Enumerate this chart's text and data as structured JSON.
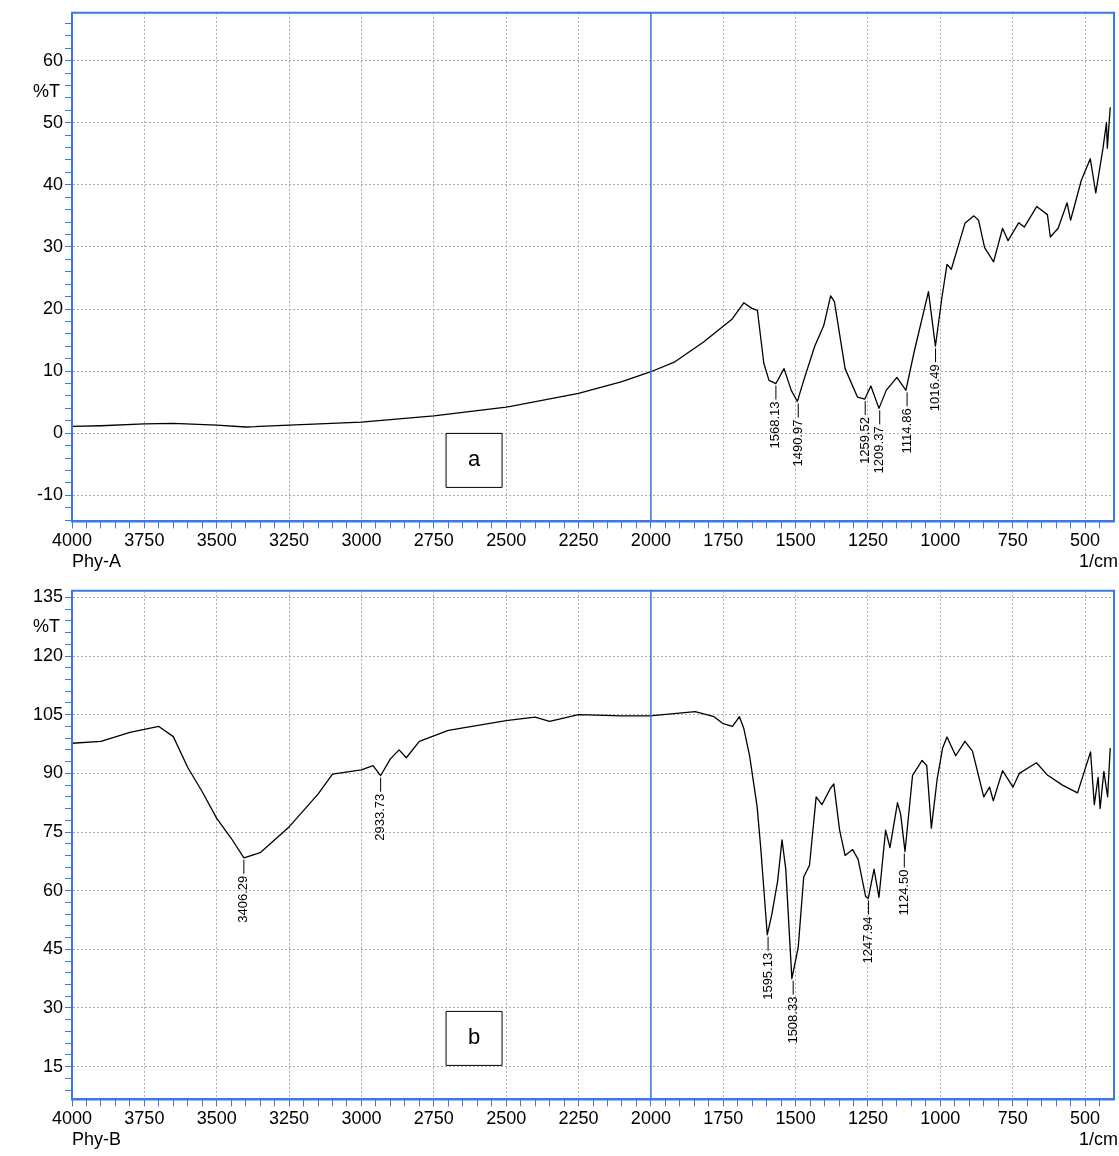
{
  "chart_data": [
    {
      "type": "line",
      "xlabel": "1/cm",
      "ylabel": "%T",
      "color": "#000000",
      "grid": true,
      "x": [
        4000,
        3900,
        3750,
        3650,
        3500,
        3400,
        3250,
        3000,
        2750,
        2500,
        2250,
        2100,
        2000,
        1917,
        1818,
        1719,
        1679,
        1651,
        1632,
        1610,
        1592,
        1568,
        1540,
        1515,
        1494,
        1472,
        1434,
        1403,
        1379,
        1366,
        1329,
        1286,
        1261,
        1240,
        1212,
        1187,
        1150,
        1119,
        1090,
        1041,
        1017,
        995,
        977,
        962,
        915,
        884,
        868,
        847,
        816,
        785,
        766,
        729,
        710,
        667,
        630,
        620,
        593,
        562,
        550,
        513,
        482,
        463,
        438,
        426,
        423,
        413
      ],
      "values": [
        1.1,
        1.2,
        1.5,
        1.6,
        1.3,
        1.0,
        1.3,
        1.8,
        2.8,
        4.2,
        6.4,
        8.3,
        9.9,
        11.5,
        14.7,
        18.4,
        21.0,
        20.1,
        19.8,
        11.3,
        8.5,
        8.0,
        10.4,
        6.9,
        5.1,
        8.5,
        14.0,
        17.3,
        22.1,
        21.2,
        10.4,
        5.8,
        5.5,
        7.6,
        4.0,
        6.9,
        9.0,
        6.9,
        13.2,
        22.8,
        14.0,
        21.7,
        27.2,
        26.4,
        33.8,
        35.0,
        34.3,
        29.9,
        27.6,
        33.0,
        31.0,
        33.9,
        33.2,
        36.5,
        35.2,
        31.6,
        33.0,
        37.1,
        34.3,
        40.7,
        44.2,
        38.7,
        45.9,
        50.0,
        45.9,
        52.5
      ],
      "xlim": [
        4000,
        400
      ],
      "ylim": [
        -14.2,
        67.7
      ],
      "xticks": [
        4000,
        3750,
        3500,
        3250,
        3000,
        2750,
        2500,
        2250,
        2000,
        1750,
        1500,
        1250,
        1000,
        750,
        500,
        {
          "value": 450,
          "label": null
        },
        {
          "value": 550,
          "label": null
        },
        {
          "value": 600,
          "label": null
        },
        {
          "value": 650,
          "label": null
        },
        {
          "value": 700,
          "label": null
        },
        {
          "value": 800,
          "label": null
        },
        {
          "value": 850,
          "label": null
        },
        {
          "value": 900,
          "label": null
        },
        {
          "value": 950,
          "label": null
        },
        {
          "value": 1050,
          "label": null
        },
        {
          "value": 1100,
          "label": null
        },
        {
          "value": 1150,
          "label": null
        },
        {
          "value": 1200,
          "label": null
        },
        {
          "value": 1300,
          "label": null
        },
        {
          "value": 1350,
          "label": null
        },
        {
          "value": 1400,
          "label": null
        },
        {
          "value": 1450,
          "label": null
        },
        {
          "value": 1550,
          "label": null
        },
        {
          "value": 1600,
          "label": null
        },
        {
          "value": 1650,
          "label": null
        },
        {
          "value": 1700,
          "label": null
        },
        {
          "value": 1800,
          "label": null
        },
        {
          "value": 1850,
          "label": null
        },
        {
          "value": 1900,
          "label": null
        },
        {
          "value": 1950,
          "label": null
        },
        {
          "value": 2050,
          "label": null
        },
        {
          "value": 2100,
          "label": null
        },
        {
          "value": 2150,
          "label": null
        },
        {
          "value": 2200,
          "label": null
        },
        {
          "value": 2300,
          "label": null
        },
        {
          "value": 2350,
          "label": null
        },
        {
          "value": 2400,
          "label": null
        },
        {
          "value": 2450,
          "label": null
        },
        {
          "value": 2550,
          "label": null
        },
        {
          "value": 2600,
          "label": null
        },
        {
          "value": 2650,
          "label": null
        },
        {
          "value": 2700,
          "label": null
        },
        {
          "value": 2800,
          "label": null
        },
        {
          "value": 2850,
          "label": null
        },
        {
          "value": 2900,
          "label": null
        },
        {
          "value": 2950,
          "label": null
        },
        {
          "value": 3050,
          "label": null
        },
        {
          "value": 3100,
          "label": null
        },
        {
          "value": 3150,
          "label": null
        },
        {
          "value": 3200,
          "label": null
        },
        {
          "value": 3300,
          "label": null
        },
        {
          "value": 3350,
          "label": null
        },
        {
          "value": 3400,
          "label": null
        },
        {
          "value": 3450,
          "label": null
        },
        {
          "value": 3550,
          "label": null
        },
        {
          "value": 3600,
          "label": null
        },
        {
          "value": 3650,
          "label": null
        },
        {
          "value": 3700,
          "label": null
        },
        {
          "value": 3800,
          "label": null
        },
        {
          "value": 3850,
          "label": null
        },
        {
          "value": 3900,
          "label": null
        },
        {
          "value": 3950,
          "label": null
        }
      ],
      "yticks": [
        -10,
        0,
        10,
        20,
        30,
        40,
        50,
        60,
        {
          "value": -14,
          "label": null
        },
        {
          "value": -12,
          "label": null
        },
        {
          "value": -8,
          "label": null
        },
        {
          "value": -6,
          "label": null
        },
        {
          "value": -4,
          "label": null
        },
        {
          "value": -2,
          "label": null
        },
        {
          "value": 2,
          "label": null
        },
        {
          "value": 4,
          "label": null
        },
        {
          "value": 6,
          "label": null
        },
        {
          "value": 8,
          "label": null
        },
        {
          "value": 12,
          "label": null
        },
        {
          "value": 14,
          "label": null
        },
        {
          "value": 16,
          "label": null
        },
        {
          "value": 18,
          "label": null
        },
        {
          "value": 22,
          "label": null
        },
        {
          "value": 24,
          "label": null
        },
        {
          "value": 26,
          "label": null
        },
        {
          "value": 28,
          "label": null
        },
        {
          "value": 32,
          "label": null
        },
        {
          "value": 34,
          "label": null
        },
        {
          "value": 36,
          "label": null
        },
        {
          "value": 38,
          "label": null
        },
        {
          "value": 42,
          "label": null
        },
        {
          "value": 44,
          "label": null
        },
        {
          "value": 46,
          "label": null
        },
        {
          "value": 48,
          "label": null
        },
        {
          "value": 52,
          "label": null
        },
        {
          "value": 54,
          "label": null
        },
        {
          "value": 56,
          "label": null
        },
        {
          "value": 58,
          "label": null
        },
        {
          "value": 62,
          "label": null
        },
        {
          "value": 64,
          "label": null
        },
        {
          "value": 66,
          "label": null
        }
      ],
      "ref_lines": [
        {
          "axis": "x",
          "value": 2000,
          "color": "#3a78e8"
        }
      ],
      "annotations": [
        "Phy-A",
        "a",
        {
          "text": "1568.13",
          "x": 1568.13,
          "y": 8.0
        },
        {
          "text": "1490.97",
          "x": 1490.97,
          "y": 5.1
        },
        {
          "text": "1259.52",
          "x": 1259.52,
          "y": 5.5
        },
        {
          "text": "1209.37",
          "x": 1209.37,
          "y": 4.0
        },
        {
          "text": "1114.86",
          "x": 1114.86,
          "y": 6.9
        },
        {
          "text": "1016.49",
          "x": 1016.49,
          "y": 14.0
        }
      ]
    },
    {
      "type": "line",
      "xlabel": "1/cm",
      "ylabel": "%T",
      "color": "#000000",
      "grid": true,
      "x": [
        4000,
        3900,
        3800,
        3700,
        3650,
        3600,
        3550,
        3500,
        3450,
        3406,
        3350,
        3250,
        3150,
        3100,
        3000,
        2960,
        2934,
        2900,
        2870,
        2845,
        2800,
        2700,
        2500,
        2400,
        2350,
        2250,
        2100,
        2003,
        1847,
        1782,
        1750,
        1718,
        1694,
        1679,
        1659,
        1633,
        1620,
        1598,
        1582,
        1562,
        1547,
        1534,
        1513,
        1491,
        1472,
        1452,
        1429,
        1409,
        1381,
        1368,
        1348,
        1329,
        1303,
        1284,
        1258,
        1249,
        1229,
        1212,
        1189,
        1174,
        1148,
        1137,
        1122,
        1096,
        1063,
        1047,
        1031,
        1011,
        992,
        977,
        947,
        915,
        889,
        850,
        830,
        817,
        785,
        749,
        727,
        668,
        629,
        578,
        526,
        481,
        468,
        455,
        448,
        435,
        422,
        413
      ],
      "values": [
        97.7,
        98.2,
        100.5,
        102,
        99.4,
        91.5,
        85.3,
        78.5,
        73.4,
        68.4,
        69.7,
        76.3,
        84.7,
        89.8,
        90.9,
        92,
        89.4,
        93.7,
        96,
        94,
        98.2,
        101,
        103.5,
        104.4,
        103.3,
        105,
        104.7,
        104.7,
        105.8,
        104.5,
        102.7,
        102,
        104.5,
        101.5,
        94.5,
        81.5,
        70.5,
        48.7,
        54,
        62.5,
        73,
        65.5,
        37.5,
        45.5,
        63.5,
        66.5,
        84,
        82,
        86,
        87.3,
        75.5,
        69,
        70.5,
        68,
        58.5,
        58,
        65.5,
        58.3,
        75.5,
        71,
        82.5,
        79.5,
        70,
        89.5,
        93.3,
        92,
        76,
        88.5,
        96.5,
        99.3,
        94.5,
        98.2,
        95.7,
        84,
        86.5,
        83,
        90.7,
        86.5,
        90,
        92.7,
        89.5,
        87,
        85,
        95.5,
        82,
        89,
        81,
        90.5,
        84,
        96.5
      ],
      "xlim": [
        4000,
        400
      ],
      "ylim": [
        6.6,
        136.7
      ],
      "xticks": [
        4000,
        3750,
        3500,
        3250,
        3000,
        2750,
        2500,
        2250,
        2000,
        1750,
        1500,
        1250,
        1000,
        750,
        500,
        {
          "value": 450,
          "label": null
        },
        {
          "value": 550,
          "label": null
        },
        {
          "value": 600,
          "label": null
        },
        {
          "value": 650,
          "label": null
        },
        {
          "value": 700,
          "label": null
        },
        {
          "value": 800,
          "label": null
        },
        {
          "value": 850,
          "label": null
        },
        {
          "value": 900,
          "label": null
        },
        {
          "value": 950,
          "label": null
        },
        {
          "value": 1050,
          "label": null
        },
        {
          "value": 1100,
          "label": null
        },
        {
          "value": 1150,
          "label": null
        },
        {
          "value": 1200,
          "label": null
        },
        {
          "value": 1300,
          "label": null
        },
        {
          "value": 1350,
          "label": null
        },
        {
          "value": 1400,
          "label": null
        },
        {
          "value": 1450,
          "label": null
        },
        {
          "value": 1550,
          "label": null
        },
        {
          "value": 1600,
          "label": null
        },
        {
          "value": 1650,
          "label": null
        },
        {
          "value": 1700,
          "label": null
        },
        {
          "value": 1800,
          "label": null
        },
        {
          "value": 1850,
          "label": null
        },
        {
          "value": 1900,
          "label": null
        },
        {
          "value": 1950,
          "label": null
        },
        {
          "value": 2050,
          "label": null
        },
        {
          "value": 2100,
          "label": null
        },
        {
          "value": 2150,
          "label": null
        },
        {
          "value": 2200,
          "label": null
        },
        {
          "value": 2300,
          "label": null
        },
        {
          "value": 2350,
          "label": null
        },
        {
          "value": 2400,
          "label": null
        },
        {
          "value": 2450,
          "label": null
        },
        {
          "value": 2550,
          "label": null
        },
        {
          "value": 2600,
          "label": null
        },
        {
          "value": 2650,
          "label": null
        },
        {
          "value": 2700,
          "label": null
        },
        {
          "value": 2800,
          "label": null
        },
        {
          "value": 2850,
          "label": null
        },
        {
          "value": 2900,
          "label": null
        },
        {
          "value": 2950,
          "label": null
        },
        {
          "value": 3050,
          "label": null
        },
        {
          "value": 3100,
          "label": null
        },
        {
          "value": 3150,
          "label": null
        },
        {
          "value": 3200,
          "label": null
        },
        {
          "value": 3300,
          "label": null
        },
        {
          "value": 3350,
          "label": null
        },
        {
          "value": 3400,
          "label": null
        },
        {
          "value": 3450,
          "label": null
        },
        {
          "value": 3550,
          "label": null
        },
        {
          "value": 3600,
          "label": null
        },
        {
          "value": 3650,
          "label": null
        },
        {
          "value": 3700,
          "label": null
        },
        {
          "value": 3800,
          "label": null
        },
        {
          "value": 3850,
          "label": null
        },
        {
          "value": 3900,
          "label": null
        },
        {
          "value": 3950,
          "label": null
        }
      ],
      "yticks": [
        15,
        30,
        45,
        60,
        75,
        90,
        105,
        120,
        135,
        {
          "value": 9,
          "label": null
        },
        {
          "value": 12,
          "label": null
        },
        {
          "value": 18,
          "label": null
        },
        {
          "value": 21,
          "label": null
        },
        {
          "value": 24,
          "label": null
        },
        {
          "value": 27,
          "label": null
        },
        {
          "value": 33,
          "label": null
        },
        {
          "value": 36,
          "label": null
        },
        {
          "value": 39,
          "label": null
        },
        {
          "value": 42,
          "label": null
        },
        {
          "value": 48,
          "label": null
        },
        {
          "value": 51,
          "label": null
        },
        {
          "value": 54,
          "label": null
        },
        {
          "value": 57,
          "label": null
        },
        {
          "value": 63,
          "label": null
        },
        {
          "value": 66,
          "label": null
        },
        {
          "value": 69,
          "label": null
        },
        {
          "value": 72,
          "label": null
        },
        {
          "value": 78,
          "label": null
        },
        {
          "value": 81,
          "label": null
        },
        {
          "value": 84,
          "label": null
        },
        {
          "value": 87,
          "label": null
        },
        {
          "value": 93,
          "label": null
        },
        {
          "value": 96,
          "label": null
        },
        {
          "value": 99,
          "label": null
        },
        {
          "value": 102,
          "label": null
        },
        {
          "value": 108,
          "label": null
        },
        {
          "value": 111,
          "label": null
        },
        {
          "value": 114,
          "label": null
        },
        {
          "value": 117,
          "label": null
        },
        {
          "value": 123,
          "label": null
        },
        {
          "value": 126,
          "label": null
        },
        {
          "value": 129,
          "label": null
        },
        {
          "value": 132,
          "label": null
        }
      ],
      "ref_lines": [
        {
          "axis": "x",
          "value": 2000,
          "color": "#3a78e8"
        }
      ],
      "annotations": [
        "Phy-B",
        "b",
        {
          "text": "3406.29",
          "x": 3406.29,
          "y": 68.4
        },
        {
          "text": "2933.73",
          "x": 2933.73,
          "y": 89.4
        },
        {
          "text": "1595.13",
          "x": 1595.13,
          "y": 48.7
        },
        {
          "text": "1508.33",
          "x": 1508.33,
          "y": 37.5
        },
        {
          "text": "1247.94",
          "x": 1247.94,
          "y": 58
        },
        {
          "text": "1124.50",
          "x": 1124.5,
          "y": 70
        }
      ]
    }
  ]
}
